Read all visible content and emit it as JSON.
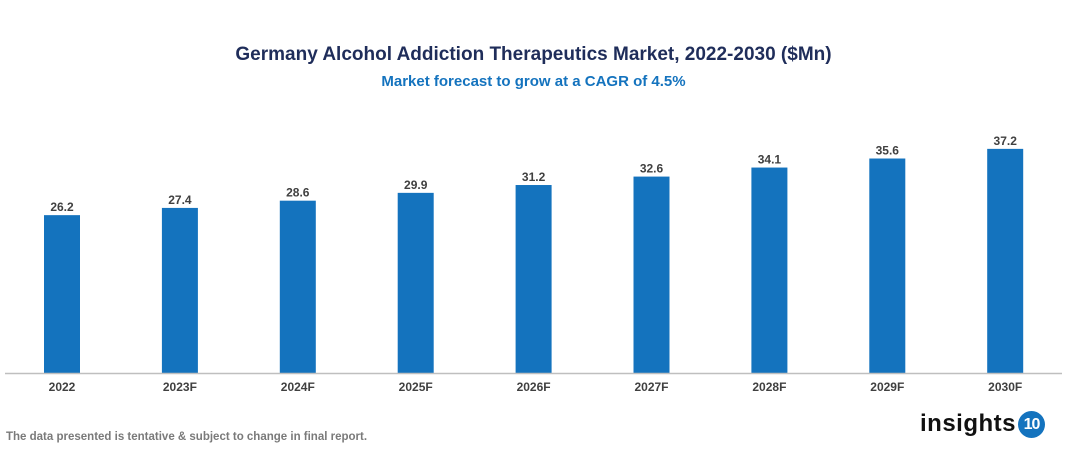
{
  "chart_data": {
    "type": "bar",
    "title": "Germany Alcohol Addiction Therapeutics Market, 2022-2030 ($Mn)",
    "subtitle": "Market forecast to grow at a CAGR of 4.5%",
    "categories": [
      "2022",
      "2023F",
      "2024F",
      "2025F",
      "2026F",
      "2027F",
      "2028F",
      "2029F",
      "2030F"
    ],
    "values": [
      26.2,
      27.4,
      28.6,
      29.9,
      31.2,
      32.6,
      34.1,
      35.6,
      37.2
    ],
    "xlabel": "",
    "ylabel": "",
    "ylim": [
      0,
      40
    ],
    "grid": false,
    "bar_color": "#1473be"
  },
  "footnote": "The data presented is tentative & subject to change in final report.",
  "logo": {
    "text": "insights",
    "number": "10"
  }
}
